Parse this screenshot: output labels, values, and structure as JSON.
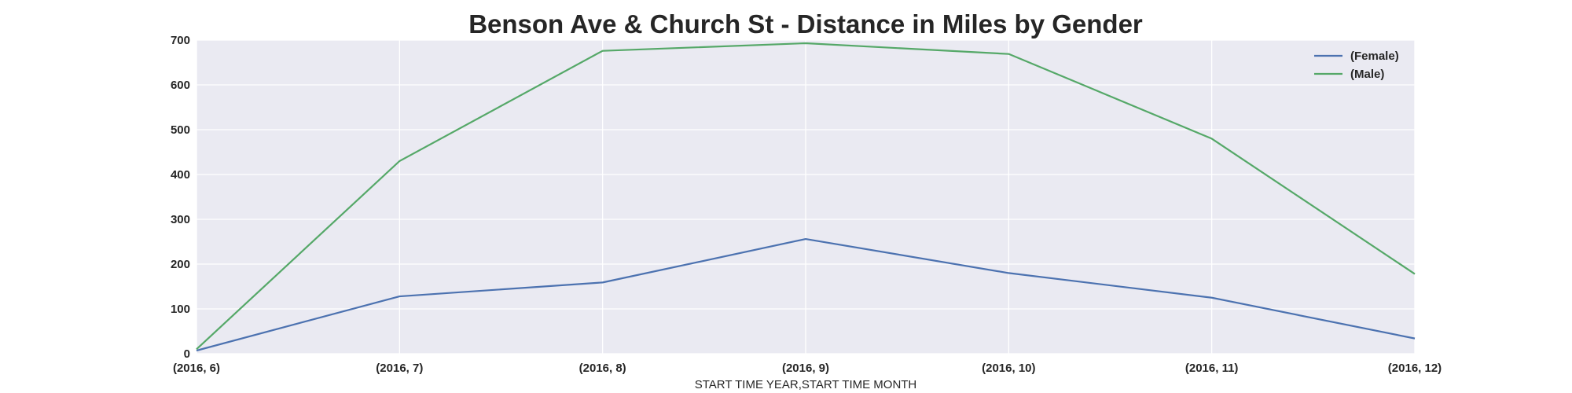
{
  "chart_data": {
    "type": "line",
    "title": "Benson Ave & Church St - Distance in Miles by Gender",
    "xlabel": "START TIME YEAR,START TIME MONTH",
    "ylabel": "",
    "categories": [
      "(2016, 6)",
      "(2016, 7)",
      "(2016, 8)",
      "(2016, 9)",
      "(2016, 10)",
      "(2016, 11)",
      "(2016, 12)"
    ],
    "ylim": [
      0,
      700
    ],
    "yticks": [
      "0",
      "100",
      "200",
      "300",
      "400",
      "500",
      "600",
      "700"
    ],
    "grid": true,
    "legend_position": "top-right",
    "background_color": "#eaeaf2",
    "series": [
      {
        "name": "(Female)",
        "color": "#4c72b0",
        "values": [
          7,
          128,
          159,
          256,
          180,
          125,
          34
        ]
      },
      {
        "name": "(Male)",
        "color": "#55a868",
        "values": [
          10,
          430,
          676,
          693,
          669,
          480,
          178
        ]
      }
    ]
  }
}
